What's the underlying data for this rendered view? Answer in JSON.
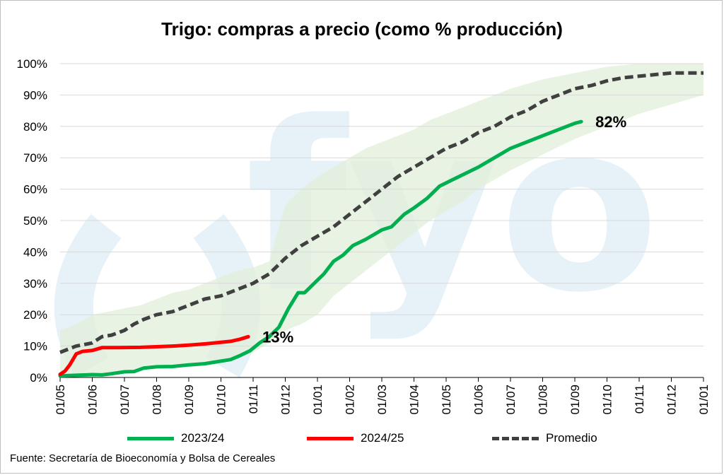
{
  "chart_data": {
    "type": "line",
    "title": "Trigo: compras a precio (como % producción)",
    "xlabel": "",
    "ylabel": "",
    "ylim": [
      0,
      100
    ],
    "y_ticks": [
      "0%",
      "10%",
      "20%",
      "30%",
      "40%",
      "50%",
      "60%",
      "70%",
      "80%",
      "90%",
      "100%"
    ],
    "x_ticks": [
      "01/05",
      "01/06",
      "01/07",
      "01/08",
      "01/09",
      "01/10",
      "01/11",
      "01/12",
      "01/01",
      "01/02",
      "01/03",
      "01/04",
      "01/05",
      "01/06",
      "01/07",
      "01/08",
      "01/09",
      "01/10",
      "01/11",
      "01/12",
      "01/01"
    ],
    "grid": true,
    "legend_position": "bottom",
    "x_unit": "months since 01/05",
    "band": {
      "color": "#e2efd9",
      "upper": [
        [
          0,
          15
        ],
        [
          0.5,
          17
        ],
        [
          1,
          20
        ],
        [
          1.5,
          21
        ],
        [
          2,
          22
        ],
        [
          2.5,
          23
        ],
        [
          3,
          25
        ],
        [
          3.5,
          27
        ],
        [
          4,
          28
        ],
        [
          4.5,
          30
        ],
        [
          5,
          32
        ],
        [
          5.5,
          34
        ],
        [
          6,
          35
        ],
        [
          6.5,
          37
        ],
        [
          7,
          55
        ],
        [
          7.5,
          60
        ],
        [
          8,
          64
        ],
        [
          8.5,
          67
        ],
        [
          9,
          70
        ],
        [
          9.5,
          73
        ],
        [
          10,
          75
        ],
        [
          10.5,
          77
        ],
        [
          11,
          79
        ],
        [
          11.5,
          82
        ],
        [
          12,
          84
        ],
        [
          12.5,
          86
        ],
        [
          13,
          88
        ],
        [
          14,
          92
        ],
        [
          15,
          95
        ],
        [
          16,
          97
        ],
        [
          17,
          99
        ],
        [
          18,
          100
        ],
        [
          19,
          100
        ],
        [
          20,
          100
        ]
      ],
      "lower": [
        [
          0,
          0
        ],
        [
          0.5,
          0
        ],
        [
          1,
          0
        ],
        [
          1.5,
          1
        ],
        [
          2,
          2
        ],
        [
          2.5,
          3
        ],
        [
          3,
          3.5
        ],
        [
          3.5,
          4
        ],
        [
          4,
          4.5
        ],
        [
          4.5,
          5
        ],
        [
          5,
          5.5
        ],
        [
          5.5,
          6
        ],
        [
          6,
          8
        ],
        [
          6.5,
          11
        ],
        [
          7,
          15
        ],
        [
          7.5,
          17
        ],
        [
          8,
          20
        ],
        [
          8.5,
          26
        ],
        [
          9,
          30
        ],
        [
          9.5,
          34
        ],
        [
          10,
          38
        ],
        [
          10.5,
          42
        ],
        [
          11,
          46
        ],
        [
          11.5,
          50
        ],
        [
          12,
          53
        ],
        [
          12.5,
          56
        ],
        [
          13,
          60
        ],
        [
          14,
          66
        ],
        [
          15,
          71
        ],
        [
          16,
          76
        ],
        [
          17,
          80
        ],
        [
          18,
          84
        ],
        [
          19,
          87
        ],
        [
          20,
          90
        ]
      ]
    },
    "series": [
      {
        "name": "2023/24",
        "color": "#00b050",
        "style": "solid",
        "end_label": "82%",
        "points": [
          [
            0,
            0.5
          ],
          [
            0.5,
            0.7
          ],
          [
            1,
            0.9
          ],
          [
            1.3,
            0.8
          ],
          [
            1.6,
            1.2
          ],
          [
            2,
            1.8
          ],
          [
            2.3,
            1.9
          ],
          [
            2.6,
            3
          ],
          [
            3,
            3.4
          ],
          [
            3.5,
            3.5
          ],
          [
            4,
            4
          ],
          [
            4.5,
            4.4
          ],
          [
            5,
            5.2
          ],
          [
            5.3,
            5.7
          ],
          [
            5.6,
            7
          ],
          [
            5.9,
            8.5
          ],
          [
            6.2,
            11
          ],
          [
            6.5,
            13
          ],
          [
            6.8,
            16
          ],
          [
            7.1,
            22
          ],
          [
            7.4,
            27
          ],
          [
            7.6,
            27
          ],
          [
            7.9,
            30
          ],
          [
            8.2,
            33
          ],
          [
            8.5,
            37
          ],
          [
            8.8,
            39
          ],
          [
            9.1,
            42
          ],
          [
            9.5,
            44
          ],
          [
            10,
            47
          ],
          [
            10.3,
            48
          ],
          [
            10.7,
            52
          ],
          [
            11,
            54
          ],
          [
            11.4,
            57
          ],
          [
            11.8,
            61
          ],
          [
            12.2,
            63
          ],
          [
            12.6,
            65
          ],
          [
            13,
            67
          ],
          [
            13.5,
            70
          ],
          [
            14,
            73
          ],
          [
            14.5,
            75
          ],
          [
            15,
            77
          ],
          [
            15.5,
            79
          ],
          [
            16,
            81
          ],
          [
            16.2,
            81.5
          ]
        ]
      },
      {
        "name": "2024/25",
        "color": "#ff0000",
        "style": "solid",
        "end_label": "13%",
        "points": [
          [
            0,
            1
          ],
          [
            0.15,
            2
          ],
          [
            0.3,
            4
          ],
          [
            0.5,
            7.5
          ],
          [
            0.7,
            8.3
          ],
          [
            1,
            8.6
          ],
          [
            1.3,
            9.5
          ],
          [
            1.8,
            9.5
          ],
          [
            2.5,
            9.6
          ],
          [
            3,
            9.8
          ],
          [
            3.5,
            10
          ],
          [
            4,
            10.3
          ],
          [
            4.5,
            10.7
          ],
          [
            5,
            11.2
          ],
          [
            5.3,
            11.5
          ],
          [
            5.6,
            12.2
          ],
          [
            5.85,
            13
          ]
        ]
      },
      {
        "name": "Promedio",
        "color": "#404040",
        "style": "dashed",
        "points": [
          [
            0,
            8
          ],
          [
            0.5,
            10
          ],
          [
            1,
            11
          ],
          [
            1.3,
            13
          ],
          [
            1.6,
            13.5
          ],
          [
            2,
            15
          ],
          [
            2.3,
            17
          ],
          [
            2.6,
            18.5
          ],
          [
            3,
            20
          ],
          [
            3.5,
            21
          ],
          [
            4,
            23
          ],
          [
            4.5,
            25
          ],
          [
            5,
            26
          ],
          [
            5.5,
            28
          ],
          [
            6,
            30
          ],
          [
            6.5,
            33
          ],
          [
            7,
            38
          ],
          [
            7.5,
            42
          ],
          [
            8,
            45
          ],
          [
            8.5,
            48
          ],
          [
            9,
            52
          ],
          [
            9.5,
            56
          ],
          [
            10,
            60
          ],
          [
            10.5,
            64
          ],
          [
            11,
            67
          ],
          [
            11.5,
            70
          ],
          [
            12,
            73
          ],
          [
            12.5,
            75
          ],
          [
            13,
            78
          ],
          [
            13.5,
            80
          ],
          [
            14,
            83
          ],
          [
            14.5,
            85
          ],
          [
            15,
            88
          ],
          [
            15.5,
            90
          ],
          [
            16,
            92
          ],
          [
            16.5,
            93
          ],
          [
            17,
            94.5
          ],
          [
            17.5,
            95.5
          ],
          [
            18,
            96
          ],
          [
            18.5,
            96.5
          ],
          [
            19,
            97
          ],
          [
            20,
            97
          ]
        ]
      }
    ]
  },
  "source": "Fuente: Secretaría de Bioeconomía y Bolsa de Cereales",
  "watermark": "fyo"
}
